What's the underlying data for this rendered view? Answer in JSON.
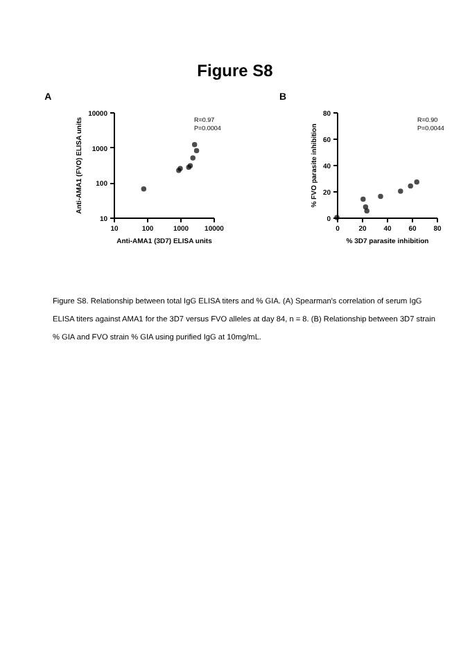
{
  "chart_data": [
    {
      "type": "scatter",
      "title": "Figure S8",
      "subtitle": "A",
      "xlabel": "Anti-AMA1 (3D7) ELISA units",
      "ylabel": "Anti-AMA1 (FVO) ELISA units",
      "log": "xy",
      "xlim": [
        10,
        10000
      ],
      "xticks": [
        10,
        100,
        1000,
        10000
      ],
      "ylim": [
        10,
        10000
      ],
      "yticks": [
        10,
        100,
        1000,
        10000
      ],
      "marker": "circle",
      "annotations": [
        "R=0.97",
        "P=0.0004"
      ],
      "series": [
        {
          "color": "#000000",
          "x": [
            80,
            900,
            1000,
            1800,
            2000,
            2400,
            2700,
            3100
          ],
          "values": [
            65,
            220,
            250,
            270,
            300,
            500,
            1200,
            800
          ]
        }
      ]
    },
    {
      "type": "scatter",
      "subtitle": "B",
      "xlabel": "% 3D7 parasite inhibition",
      "ylabel": "% FVO parasite inhibition",
      "xlim": [
        0,
        80
      ],
      "xticks": [
        0,
        20,
        40,
        60,
        80
      ],
      "ylim": [
        0,
        80
      ],
      "yticks": [
        0,
        20,
        40,
        60,
        80
      ],
      "marker": "circle",
      "annotations": [
        "R=0.90",
        "P=0.0044",
        "Figure S8. Relationship between total IgG ELISA titers and % GIA. (A) Spearman's correlation of serum IgG ELISA titers against AMA1 for the 3D7 versus FVO alleles at day 84, n = 8. (B) Relationship between 3D7 strain % GIA and FVO strain % GIA using purified IgG at 10mg/mL."
      ],
      "series": [
        {
          "color": "#000000",
          "x": [
            0,
            21,
            23,
            24,
            35,
            51,
            59,
            64
          ],
          "values": [
            0,
            14,
            8,
            5,
            16,
            20,
            24,
            27
          ]
        }
      ]
    }
  ]
}
